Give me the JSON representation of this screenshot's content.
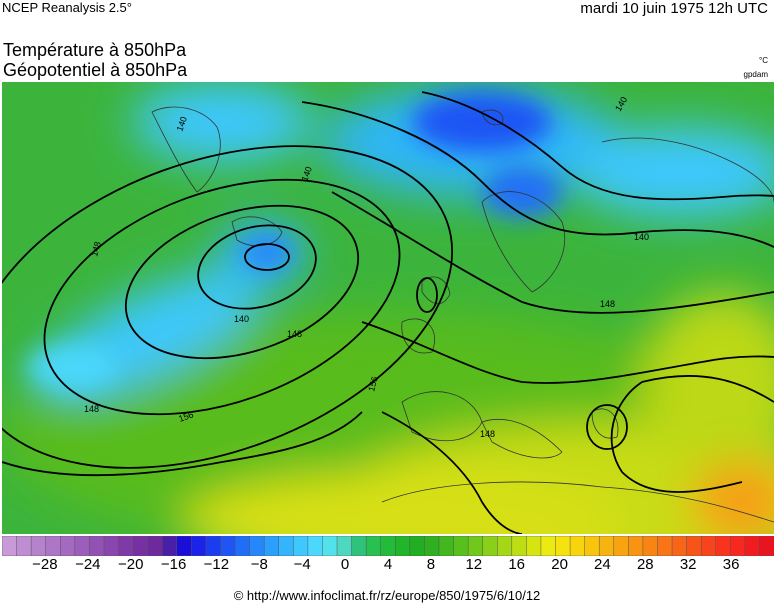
{
  "header": {
    "source": "NCEP Reanalysis 2.5°",
    "date": "mardi 10 juin 1975 12h UTC",
    "title_line1": "Température à 850hPa",
    "title_line2": "Géopotentiel à 850hPa",
    "unit_temperature": "°C",
    "unit_geopotential": "gpdam"
  },
  "colorbar": {
    "tick_labels": [
      "−28",
      "−24",
      "−20",
      "−16",
      "−12",
      "−8",
      "−4",
      "0",
      "4",
      "8",
      "12",
      "16",
      "20",
      "24",
      "28",
      "32",
      "36"
    ],
    "min": -32,
    "max": 40,
    "colors": [
      "#c89ad8",
      "#bf8ed2",
      "#b682cc",
      "#ad76c6",
      "#a46ac0",
      "#9b5eba",
      "#9252b4",
      "#8946ae",
      "#803aa8",
      "#7730a2",
      "#6e2a9c",
      "#4a1fa8",
      "#1a0ed8",
      "#1b23e8",
      "#1c3cf0",
      "#1e55f4",
      "#206ef8",
      "#2587fa",
      "#2b9ffc",
      "#33b4fd",
      "#3ec8fe",
      "#4cd8fc",
      "#52e2ec",
      "#4ed8c0",
      "#2ec27a",
      "#28c050",
      "#22bc3a",
      "#20b52a",
      "#22ae22",
      "#30b020",
      "#42b81e",
      "#58c01c",
      "#70c81a",
      "#8ad018",
      "#a4d816",
      "#bede14",
      "#d6e412",
      "#ecea10",
      "#f6e20e",
      "#f8d40c",
      "#f8c40c",
      "#f8b40e",
      "#f8a410",
      "#f89412",
      "#f88414",
      "#f87416",
      "#f86418",
      "#f8541a",
      "#f8441c",
      "#f8341e",
      "#f82820",
      "#f01c20",
      "#e81420"
    ]
  },
  "map": {
    "isohypse_labels": [
      "140",
      "140",
      "140",
      "140",
      "140",
      "148",
      "148",
      "148",
      "148",
      "148",
      "156",
      "156"
    ]
  },
  "footer": {
    "copyright": "© http://www.infoclimat.fr/rz/europe/850/1975/6/10/12"
  }
}
